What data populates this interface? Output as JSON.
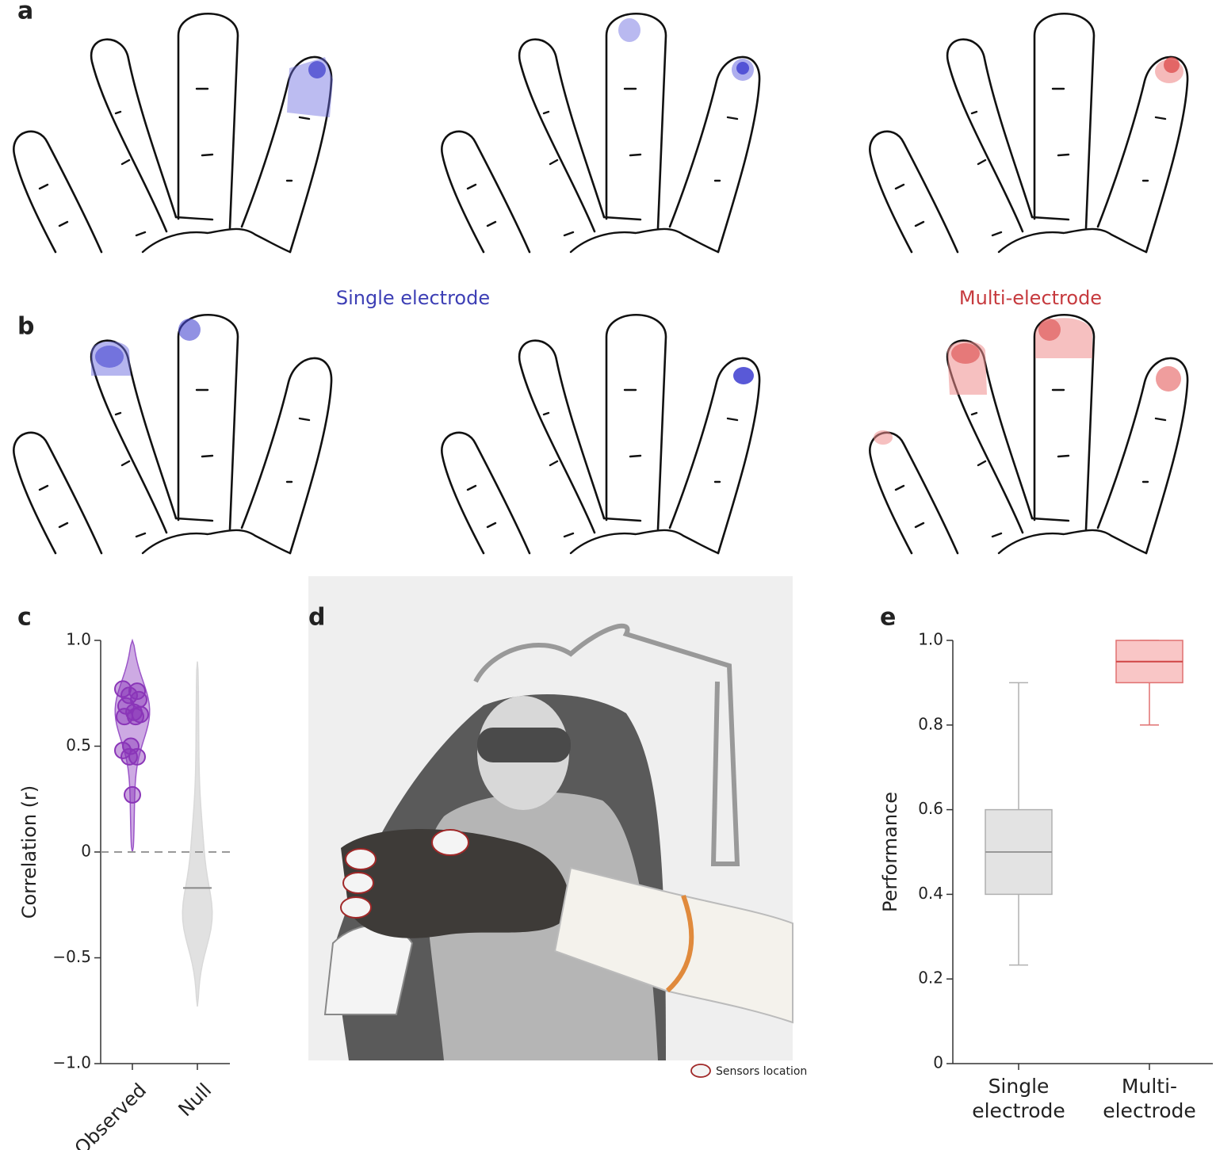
{
  "panel_labels": [
    "a",
    "b",
    "c",
    "d",
    "e"
  ],
  "column_labels": [
    {
      "text": "Single electrode",
      "color": "#3d3fb5"
    },
    {
      "text": "Multi-electrode",
      "color": "#c63a3e"
    }
  ],
  "legend_text": "Sensors location",
  "chart_data": [
    {
      "type": "violin",
      "ylabel": "Correlation (r)",
      "categories": [
        "Observed",
        "Null"
      ],
      "ylim": [
        -1,
        1
      ],
      "yticks": [
        {
          "value": -1,
          "label": "−1.0"
        },
        {
          "value": -0.5,
          "label": "−0.5"
        },
        0,
        0.5,
        {
          "value": 1,
          "label": "1.0"
        }
      ],
      "hline": 0,
      "violins": [
        {
          "min": 0,
          "max": 1,
          "color": "#9b55c8"
        },
        {
          "min": -0.73,
          "max": 0.9,
          "median": -0.17,
          "color": "#d9d9d9"
        }
      ],
      "points": {
        "color": "#8a35b8",
        "values": [
          0.77,
          0.76,
          0.74,
          0.72,
          0.69,
          0.66,
          0.64,
          0.64,
          0.65,
          0.5,
          0.48,
          0.45,
          0.45,
          0.27
        ]
      }
    },
    {
      "type": "box",
      "ylabel": "Performance",
      "categories": [
        "Single electrode",
        "Multi-electrode"
      ],
      "ylim": [
        0,
        1
      ],
      "yticks": [
        0,
        0.2,
        0.4,
        0.6,
        0.8,
        {
          "value": 1,
          "label": "1.0"
        }
      ],
      "boxes": [
        {
          "low": 0.233,
          "q1": 0.4,
          "median": 0.5,
          "q3": 0.6,
          "high": 0.9,
          "fill": "#e3e3e3",
          "stroke": "#b0b0b0",
          "median_color": "#999999"
        },
        {
          "low": 0.8,
          "q1": 0.9,
          "median": 0.95,
          "q3": 1,
          "high": 1,
          "fill": "#f9c6c6",
          "stroke": "#e07070",
          "median_color": "#d04545"
        }
      ]
    }
  ]
}
